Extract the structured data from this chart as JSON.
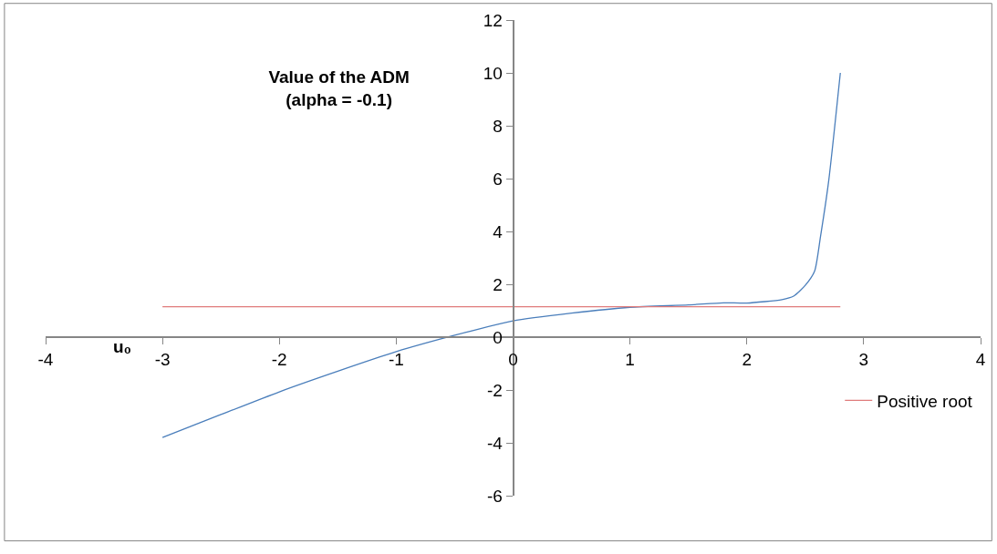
{
  "chart_data": {
    "type": "line",
    "title": "Value of the ADM\n(alpha = -0.1)",
    "xlabel": "u₀",
    "xlim": [
      -4,
      4
    ],
    "xticks": [
      -4,
      -3,
      -2,
      -1,
      0,
      1,
      2,
      3,
      4
    ],
    "ylim": [
      -6,
      12
    ],
    "yticks": [
      -6,
      -4,
      -2,
      0,
      2,
      4,
      6,
      8,
      10,
      12
    ],
    "legend": "right",
    "marker": "none",
    "line_style": "solid",
    "series": [
      {
        "color": "#4a7ebb",
        "x": [
          -3,
          -2.5,
          -2,
          -1.5,
          -1,
          -0.5,
          0,
          0.5,
          1,
          1.5,
          1.8,
          2,
          2.3,
          2.4,
          2.5,
          2.58,
          2.63,
          2.7,
          2.8
        ],
        "values": [
          -3.8,
          -2.93,
          -2.07,
          -1.29,
          -0.55,
          0.07,
          0.62,
          0.91,
          1.13,
          1.22,
          1.3,
          1.29,
          1.42,
          1.55,
          1.96,
          2.5,
          3.8,
          5.9,
          10
        ]
      },
      {
        "name": "Positive root",
        "color": "#e07b7b",
        "x": [
          -3,
          2.8
        ],
        "values": [
          1.15,
          1.15
        ]
      }
    ]
  }
}
